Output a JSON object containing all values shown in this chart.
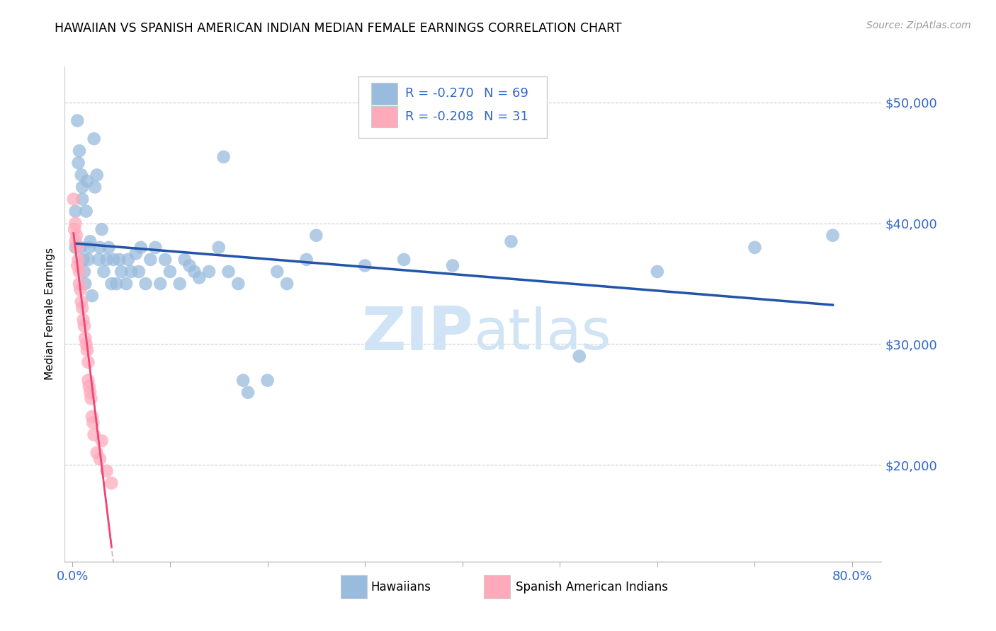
{
  "title": "HAWAIIAN VS SPANISH AMERICAN INDIAN MEDIAN FEMALE EARNINGS CORRELATION CHART",
  "source": "Source: ZipAtlas.com",
  "ylabel": "Median Female Earnings",
  "watermark": "ZIPatlas",
  "right_ytick_labels": [
    "$50,000",
    "$40,000",
    "$30,000",
    "$20,000"
  ],
  "right_ytick_values": [
    50000,
    40000,
    30000,
    20000
  ],
  "ymin": 12000,
  "ymax": 53000,
  "xmin": -0.008,
  "xmax": 0.83,
  "hawaiians_R": -0.27,
  "hawaiians_N": 69,
  "spanish_R": -0.208,
  "spanish_N": 31,
  "legend_label_hawaiians": "Hawaiians",
  "legend_label_spanish": "Spanish American Indians",
  "color_hawaiians": "#99BBDD",
  "color_spanish": "#FFAABB",
  "trendline_color_hawaiians": "#2255AA",
  "trendline_color_spanish": "#EE4477",
  "trendline_dashed_color": "#DDBBCC",
  "text_color_blue": "#3366CC",
  "background_color": "#FFFFFF",
  "title_fontsize": 12.5,
  "axis_color": "#AAAAAA",
  "hawaiians_x": [
    0.003,
    0.005,
    0.006,
    0.007,
    0.008,
    0.009,
    0.01,
    0.01,
    0.011,
    0.012,
    0.013,
    0.014,
    0.015,
    0.016,
    0.017,
    0.018,
    0.02,
    0.022,
    0.023,
    0.025,
    0.027,
    0.028,
    0.03,
    0.032,
    0.035,
    0.037,
    0.04,
    0.042,
    0.045,
    0.048,
    0.05,
    0.055,
    0.057,
    0.06,
    0.065,
    0.068,
    0.07,
    0.075,
    0.08,
    0.085,
    0.09,
    0.095,
    0.1,
    0.11,
    0.115,
    0.12,
    0.125,
    0.13,
    0.14,
    0.15,
    0.155,
    0.16,
    0.17,
    0.175,
    0.18,
    0.2,
    0.21,
    0.22,
    0.24,
    0.25,
    0.3,
    0.34,
    0.39,
    0.45,
    0.52,
    0.6,
    0.7,
    0.78,
    0.003
  ],
  "hawaiians_y": [
    38000,
    48500,
    45000,
    46000,
    38000,
    44000,
    42000,
    43000,
    37000,
    36000,
    35000,
    41000,
    43500,
    37000,
    38000,
    38500,
    34000,
    47000,
    43000,
    44000,
    37000,
    38000,
    39500,
    36000,
    37000,
    38000,
    35000,
    37000,
    35000,
    37000,
    36000,
    35000,
    37000,
    36000,
    37500,
    36000,
    38000,
    35000,
    37000,
    38000,
    35000,
    37000,
    36000,
    35000,
    37000,
    36500,
    36000,
    35500,
    36000,
    38000,
    45500,
    36000,
    35000,
    27000,
    26000,
    27000,
    36000,
    35000,
    37000,
    39000,
    36500,
    37000,
    36500,
    38500,
    29000,
    36000,
    38000,
    39000,
    41000
  ],
  "spanish_x": [
    0.001,
    0.002,
    0.003,
    0.003,
    0.004,
    0.005,
    0.005,
    0.006,
    0.007,
    0.007,
    0.008,
    0.009,
    0.01,
    0.011,
    0.012,
    0.013,
    0.014,
    0.015,
    0.016,
    0.016,
    0.017,
    0.018,
    0.019,
    0.02,
    0.021,
    0.022,
    0.025,
    0.028,
    0.03,
    0.035,
    0.04
  ],
  "spanish_y": [
    42000,
    39500,
    40000,
    38500,
    39000,
    38000,
    36500,
    37000,
    36000,
    35000,
    34500,
    33500,
    33000,
    32000,
    31500,
    30500,
    30000,
    29500,
    28500,
    27000,
    26500,
    26000,
    25500,
    24000,
    23500,
    22500,
    21000,
    20500,
    22000,
    19500,
    18500
  ],
  "spanish_trendline_x": [
    0.001,
    0.04
  ],
  "dashed_trendline_x_end": 0.32,
  "hawaiians_trendline_x": [
    0.003,
    0.78
  ]
}
